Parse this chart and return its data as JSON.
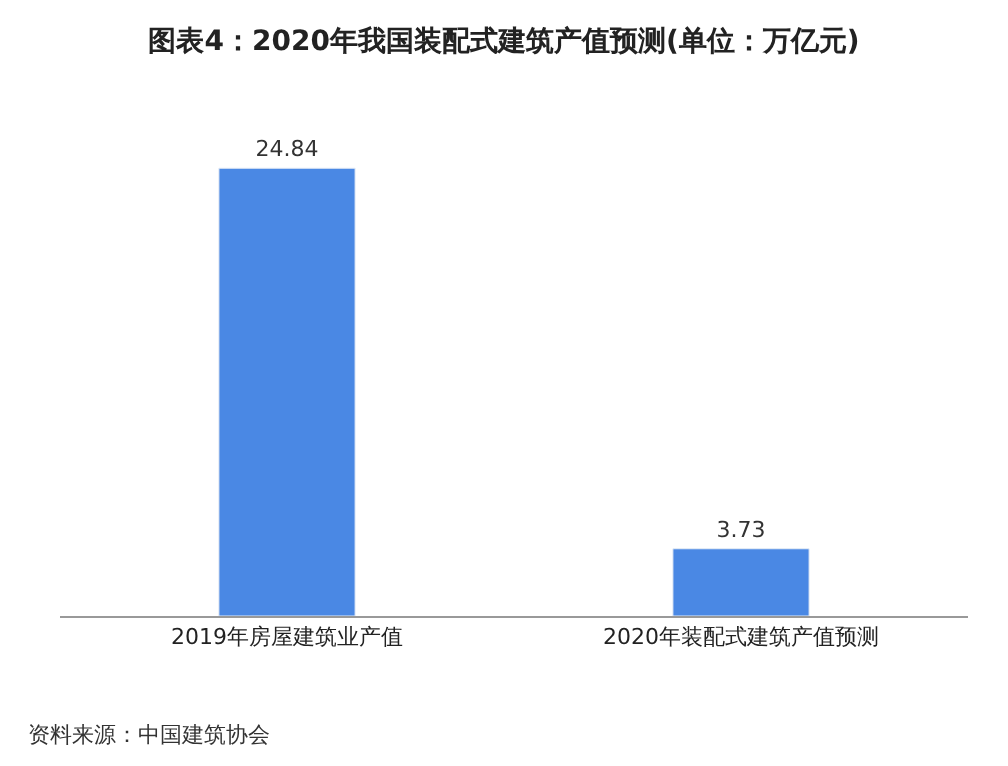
{
  "chart_data": {
    "type": "bar",
    "title": "图表4：2020年我国装配式建筑产值预测(单位：万亿元)",
    "categories": [
      "2019年房屋建筑业产值",
      "2020年装配式建筑产值预测"
    ],
    "values": [
      24.84,
      3.73
    ],
    "color": "#4a88e4",
    "data_labels": true,
    "legend": false,
    "annotations": [
      "资料来源：中国建筑协会"
    ]
  }
}
